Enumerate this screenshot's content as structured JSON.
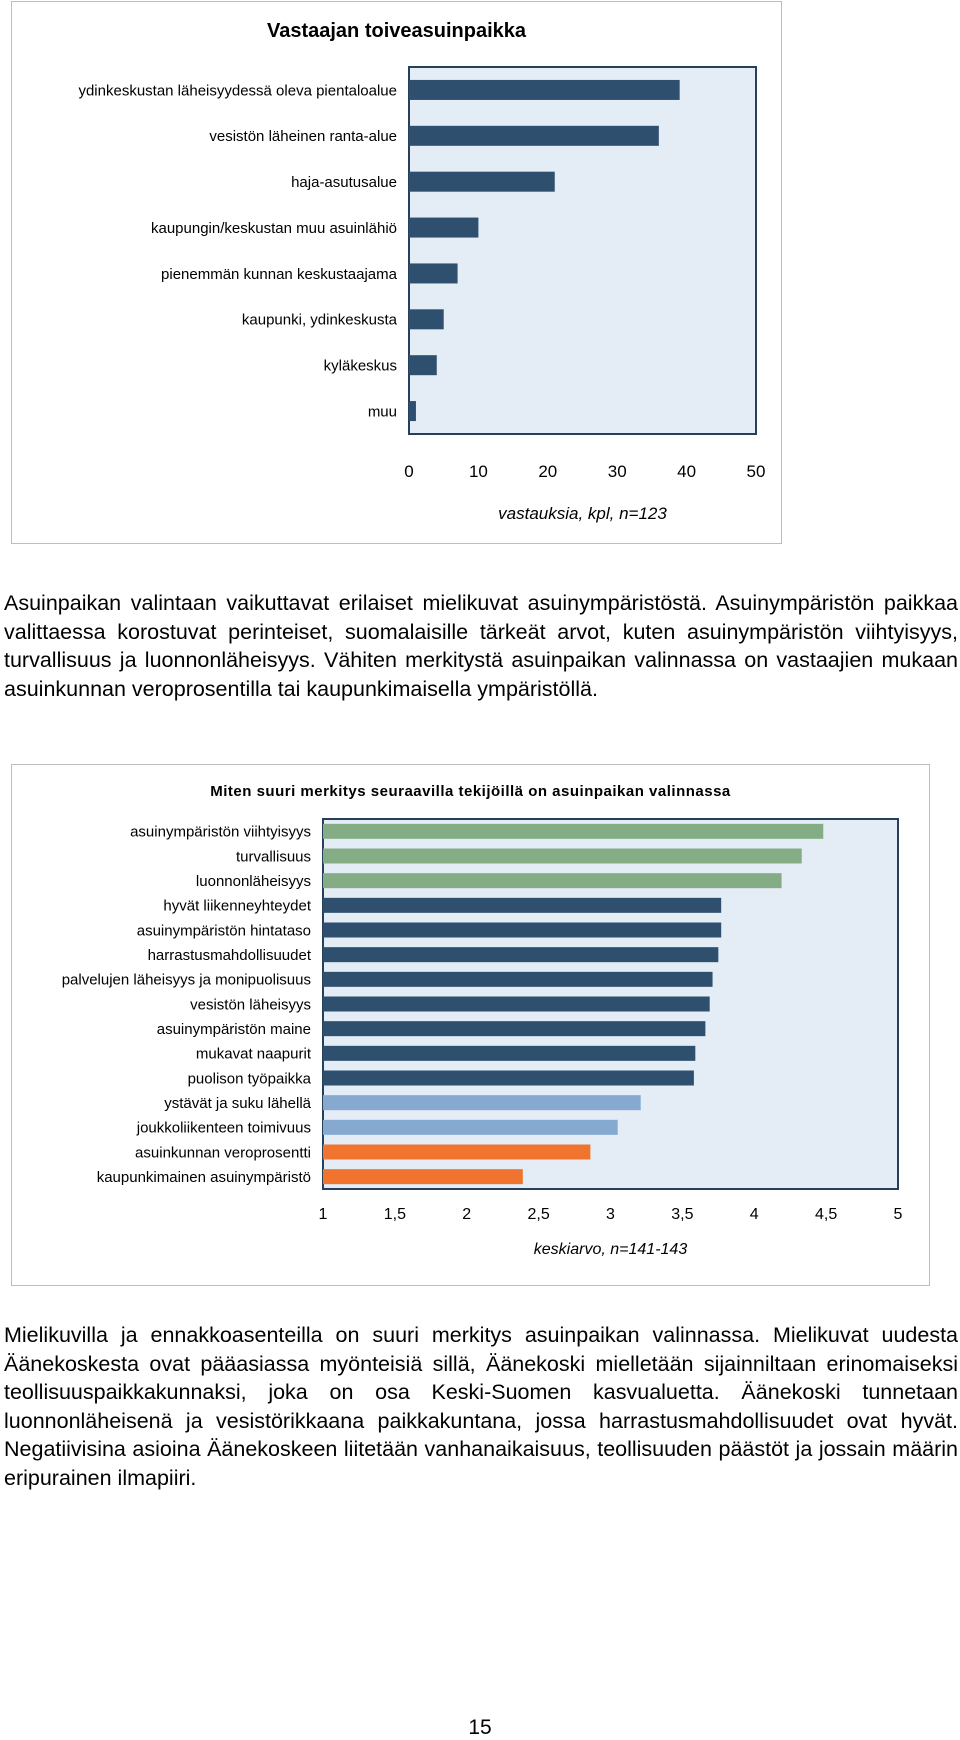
{
  "chart_data": [
    {
      "type": "bar",
      "orientation": "horizontal",
      "title": "Vastaajan toiveasuinpaikka",
      "categories": [
        "ydinkeskustan läheisyydessä oleva pientaloalue",
        "vesistön läheinen ranta-alue",
        "haja-asutusalue",
        "kaupungin/keskustan muu asuinlähiö",
        "pienemmän kunnan keskustaajama",
        "kaupunki, ydinkeskusta",
        "kyläkeskus",
        "muu"
      ],
      "values": [
        39,
        36,
        21,
        10,
        7,
        5,
        4,
        1
      ],
      "xlabel": "vastauksia, kpl, n=123",
      "xlim": [
        0,
        50
      ],
      "xticks": [
        "0",
        "10",
        "20",
        "30",
        "40",
        "50"
      ],
      "bar_color": "#2e4f6e",
      "plot_bg": "#e4ecf6"
    },
    {
      "type": "bar",
      "orientation": "horizontal",
      "title": "Miten suuri merkitys seuraavilla tekijöillä on asuinpaikan valinnassa",
      "categories": [
        "asuinympäristön viihtyisyys",
        "turvallisuus",
        "luonnonläheisyys",
        "hyvät liikenneyhteydet",
        "asuinympäristön hintataso",
        "harrastusmahdollisuudet",
        "palvelujen läheisyys ja monipuolisuus",
        "vesistön läheisyys",
        "asuinympäristön maine",
        "mukavat naapurit",
        "puolison työpaikka",
        "ystävät ja suku lähellä",
        "joukkoliikenteen toimivuus",
        "asuinkunnan veroprosentti",
        "kaupunkimainen asuinympäristö"
      ],
      "values": [
        4.48,
        4.33,
        4.19,
        3.77,
        3.77,
        3.75,
        3.71,
        3.69,
        3.66,
        3.59,
        3.58,
        3.21,
        3.05,
        2.86,
        2.39
      ],
      "colors": [
        "#85ad85",
        "#85ad85",
        "#85ad85",
        "#2e4f6e",
        "#2e4f6e",
        "#2e4f6e",
        "#2e4f6e",
        "#2e4f6e",
        "#2e4f6e",
        "#2e4f6e",
        "#2e4f6e",
        "#86aacf",
        "#86aacf",
        "#f0742e",
        "#f0742e"
      ],
      "xlabel": "keskiarvo, n=141-143",
      "xlim": [
        1,
        5
      ],
      "xticks": [
        "1",
        "1,5",
        "2",
        "2,5",
        "3",
        "3,5",
        "4",
        "4,5",
        "5"
      ],
      "plot_bg": "#e4ecf6"
    }
  ],
  "paragraphs": {
    "p1": "Asuinpaikan valintaan vaikuttavat erilaiset mielikuvat asuinympäristöstä. Asuinympäristön paikkaa valittaessa korostuvat perinteiset, suomalaisille tärkeät arvot, kuten asuinympäristön viihtyisyys, turvallisuus ja luonnonläheisyys. Vähiten merkitystä asuinpaikan valinnassa on vastaajien mukaan asuinkunnan veroprosentilla tai kaupunkimaisella ympäristöllä.",
    "p2": "Mielikuvilla ja ennakkoasenteilla on suuri merkitys asuinpaikan valinnassa. Mielikuvat uudesta Äänekoskesta ovat pääasiassa myönteisiä sillä, Äänekoski mielletään sijainniltaan erinomaiseksi teollisuuspaikkakunnaksi, joka on osa Keski-Suomen kasvualuetta. Äänekoski tunnetaan luonnonläheisenä ja vesistörikkaana paikkakuntana, jossa harrastusmahdollisuudet ovat hyvät. Negatiivisina asioina Äänekoskeen liitetään vanhanaikaisuus, teollisuuden päästöt ja jossain määrin eripurainen ilmapiiri."
  },
  "page_number": "15"
}
